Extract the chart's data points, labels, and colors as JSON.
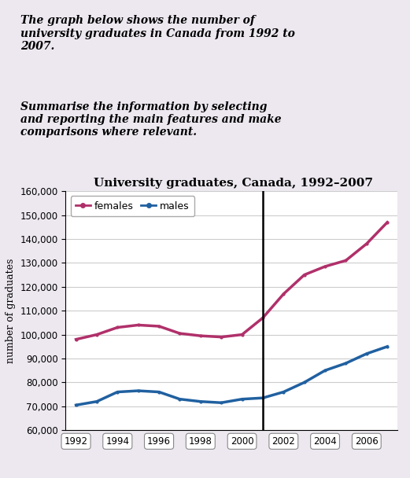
{
  "title": "University graduates, Canada, 1992–2007",
  "ylabel": "number of graduates",
  "background_color": "#ede8f0",
  "text_block_bg": "#ede8f0",
  "paragraph1": "The graph below shows the number of\nuniversity graduates in Canada from 1992 to\n2007.",
  "paragraph2": "Summarise the information by selecting\nand reporting the main features and make\ncomparisons where relevant.",
  "years": [
    1992,
    1993,
    1994,
    1995,
    1996,
    1997,
    1998,
    1999,
    2000,
    2001,
    2002,
    2003,
    2004,
    2005,
    2006,
    2007
  ],
  "females": [
    98000,
    100000,
    103000,
    104000,
    103500,
    100500,
    99500,
    99000,
    100000,
    107000,
    117000,
    125000,
    128500,
    131000,
    138000,
    147000
  ],
  "males": [
    70500,
    72000,
    76000,
    76500,
    76000,
    73000,
    72000,
    71500,
    73000,
    73500,
    76000,
    80000,
    85000,
    88000,
    92000,
    95000
  ],
  "female_color": "#b0306a",
  "male_color": "#2060a0",
  "vline_x": 2001,
  "ylim": [
    60000,
    160000
  ],
  "yticks": [
    60000,
    70000,
    80000,
    90000,
    100000,
    110000,
    120000,
    130000,
    140000,
    150000,
    160000
  ],
  "xticks": [
    1992,
    1994,
    1996,
    1998,
    2000,
    2002,
    2004,
    2006
  ],
  "grid_color": "#cccccc",
  "line_width": 2.5,
  "title_fontsize": 11,
  "axis_label_fontsize": 9,
  "tick_fontsize": 8.5
}
